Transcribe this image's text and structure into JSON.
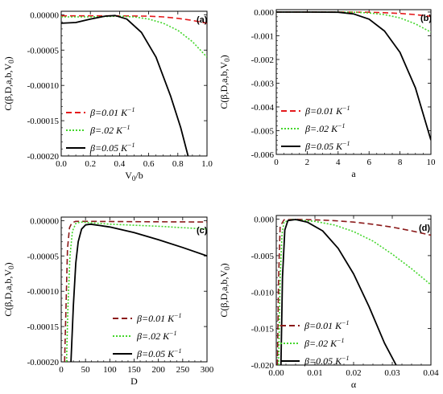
{
  "chart_data": [
    {
      "type": "line",
      "panel_label": "(a)",
      "xlabel_main": "V",
      "xlabel_sub": "0",
      "xlabel_rest": "/b",
      "ylabel": "C(β,D,a,b,V",
      "ylabel_sub": "0",
      "ylabel_close": ")",
      "xlim": [
        0,
        1.0
      ],
      "ylim": [
        -0.0002,
        5e-06
      ],
      "xticks": [
        0,
        0.2,
        0.4,
        0.6,
        0.8,
        1.0
      ],
      "xtick_labels": [
        "0.0",
        "0.2",
        "0.4",
        "0.6",
        "0.8",
        "1.0"
      ],
      "yticks": [
        0,
        -5e-05,
        -0.0001,
        -0.00015,
        -0.0002
      ],
      "ytick_labels": [
        "0.00000",
        "-0.00005",
        "-0.00010",
        "-0.00015",
        "-0.00020"
      ],
      "legend_position": "bottom-left",
      "series": [
        {
          "name": "β=0.01 K",
          "sup": "−1",
          "color": "#e41a1c",
          "dash": "7,4",
          "x": [
            0,
            0.2,
            0.4,
            0.6,
            0.7,
            0.8,
            0.9,
            1.0
          ],
          "y": [
            -1.5e-06,
            -1.5e-06,
            -1.5e-06,
            -2e-06,
            -3e-06,
            -5e-06,
            -8e-06,
            -1.2e-05
          ]
        },
        {
          "name": "β=.02 K",
          "sup": "−1",
          "color": "#44d62c",
          "dash": "2,2",
          "x": [
            0,
            0.2,
            0.4,
            0.5,
            0.6,
            0.7,
            0.8,
            0.9,
            1.0
          ],
          "y": [
            -3e-06,
            -3e-06,
            -2e-06,
            -3e-06,
            -6e-06,
            -1.2e-05,
            -2.2e-05,
            -3.8e-05,
            -6e-05
          ]
        },
        {
          "name": "β=0.05 K",
          "sup": "−1",
          "color": "#000000",
          "dash": "",
          "x": [
            0,
            0.1,
            0.2,
            0.3,
            0.37,
            0.45,
            0.55,
            0.65,
            0.75,
            0.82,
            0.87
          ],
          "y": [
            -1.2e-05,
            -1.1e-05,
            -6e-06,
            -2e-06,
            -1e-06,
            -6e-06,
            -2.5e-05,
            -6e-05,
            -0.000115,
            -0.00016,
            -0.0002
          ]
        }
      ]
    },
    {
      "type": "line",
      "panel_label": "(b)",
      "xlabel_main": "a",
      "xlabel_sub": "",
      "xlabel_rest": "",
      "ylabel": "C(β,D,a,b,V",
      "ylabel_sub": "0",
      "ylabel_close": ")",
      "xlim": [
        0,
        10
      ],
      "ylim": [
        -0.006,
        0.0001
      ],
      "xticks": [
        0,
        2,
        4,
        6,
        8,
        10
      ],
      "xtick_labels": [
        "0",
        "2",
        "4",
        "6",
        "8",
        "10"
      ],
      "yticks": [
        0,
        -0.001,
        -0.002,
        -0.003,
        -0.004,
        -0.005,
        -0.006
      ],
      "ytick_labels": [
        "0.000",
        "-0.001",
        "-0.002",
        "-0.003",
        "-0.004",
        "-0.005",
        "-0.006"
      ],
      "legend_position": "bottom-left",
      "series": [
        {
          "name": "β=0.01 K",
          "sup": "−1",
          "color": "#e41a1c",
          "dash": "7,4",
          "x": [
            0,
            2,
            4,
            6,
            7,
            8,
            9,
            10
          ],
          "y": [
            0,
            0,
            0,
            -1e-05,
            -3e-05,
            -6e-05,
            -0.00011,
            -0.00018
          ]
        },
        {
          "name": "β=.02 K",
          "sup": "−1",
          "color": "#44d62c",
          "dash": "2,2",
          "x": [
            0,
            2,
            4,
            5,
            6,
            7,
            8,
            9,
            10
          ],
          "y": [
            0,
            0,
            0,
            -1e-05,
            -4e-05,
            -0.00011,
            -0.00025,
            -0.0005,
            -0.00085
          ]
        },
        {
          "name": "β=0.05 K",
          "sup": "−1",
          "color": "#000000",
          "dash": "",
          "x": [
            0,
            2,
            4,
            5,
            6,
            7,
            8,
            9,
            10
          ],
          "y": [
            0,
            0,
            -1e-05,
            -8e-05,
            -0.0003,
            -0.0008,
            -0.0017,
            -0.0032,
            -0.0054
          ]
        }
      ]
    },
    {
      "type": "line",
      "panel_label": "(c)",
      "xlabel_main": "D",
      "xlabel_sub": "",
      "xlabel_rest": "",
      "ylabel": "C(β,D,a,b,V",
      "ylabel_sub": "0",
      "ylabel_close": ")",
      "xlim": [
        0,
        300
      ],
      "ylim": [
        -0.0002,
        5e-06
      ],
      "xticks": [
        0,
        50,
        100,
        150,
        200,
        250,
        300
      ],
      "xtick_labels": [
        "0",
        "50",
        "100",
        "150",
        "200",
        "250",
        "300"
      ],
      "yticks": [
        0,
        -5e-05,
        -0.0001,
        -0.00015,
        -0.0002
      ],
      "ytick_labels": [
        "0.00000",
        "-0.00005",
        "-0.00010",
        "-0.00015",
        "-0.00020"
      ],
      "legend_position": "bottom-right",
      "series": [
        {
          "name": "β=0.01 K",
          "sup": "−1",
          "color": "#8b1a1a",
          "dash": "7,4",
          "x": [
            7,
            10,
            13,
            17,
            22,
            30,
            60,
            150,
            300
          ],
          "y": [
            -0.0002,
            -0.00012,
            -4e-05,
            -1e-05,
            -3e-06,
            -1e-06,
            -1e-06,
            -1.5e-06,
            -2e-06
          ]
        },
        {
          "name": "β=.02 K",
          "sup": "−1",
          "color": "#44d62c",
          "dash": "2,2",
          "x": [
            11,
            14,
            18,
            23,
            30,
            40,
            60,
            100,
            200,
            300
          ],
          "y": [
            -0.0002,
            -0.00012,
            -5e-05,
            -1.5e-05,
            -4e-06,
            -2e-06,
            -3e-06,
            -5e-06,
            -8e-06,
            -1.2e-05
          ]
        },
        {
          "name": "β=0.05 K",
          "sup": "−1",
          "color": "#000000",
          "dash": "",
          "x": [
            20,
            25,
            30,
            35,
            42,
            50,
            60,
            80,
            100,
            150,
            200,
            250,
            300
          ],
          "y": [
            -0.0002,
            -0.00012,
            -6e-05,
            -3e-05,
            -1.2e-05,
            -6e-06,
            -5e-06,
            -7e-06,
            -9e-06,
            -1.7e-05,
            -2.7e-05,
            -3.8e-05,
            -5e-05
          ]
        }
      ]
    },
    {
      "type": "line",
      "panel_label": "(d)",
      "xlabel_main": "α",
      "xlabel_sub": "",
      "xlabel_rest": "",
      "ylabel": "C(β,D,a,b,V",
      "ylabel_sub": "0",
      "ylabel_close": ")",
      "xlim": [
        0,
        0.04
      ],
      "ylim": [
        -0.02,
        0.0005
      ],
      "xticks": [
        0,
        0.01,
        0.02,
        0.03,
        0.04
      ],
      "xtick_labels": [
        "0.00",
        "0.01",
        "0.02",
        "0.03",
        "0.04"
      ],
      "yticks": [
        0,
        -0.005,
        -0.01,
        -0.015,
        -0.02
      ],
      "ytick_labels": [
        "0.000",
        "-0.005",
        "-0.010",
        "-0.015",
        "-0.020"
      ],
      "legend_position": "bottom-left",
      "series": [
        {
          "name": "β=0.01 K",
          "sup": "−1",
          "color": "#8b1a1a",
          "dash": "7,4",
          "x": [
            0.0003,
            0.0006,
            0.001,
            0.002,
            0.005,
            0.01,
            0.015,
            0.02,
            0.025,
            0.03,
            0.035,
            0.04
          ],
          "y": [
            -0.02,
            -0.008,
            -0.001,
            -0.0001,
            -3e-05,
            -0.0001,
            -0.0002,
            -0.0004,
            -0.0007,
            -0.0011,
            -0.0016,
            -0.0022
          ]
        },
        {
          "name": "β=.02 K",
          "sup": "−1",
          "color": "#44d62c",
          "dash": "2,2",
          "x": [
            0.0006,
            0.001,
            0.0015,
            0.002,
            0.004,
            0.01,
            0.015,
            0.02,
            0.025,
            0.03,
            0.035,
            0.04
          ],
          "y": [
            -0.02,
            -0.008,
            -0.002,
            -0.0004,
            -5e-05,
            -0.0003,
            -0.0008,
            -0.0017,
            -0.003,
            -0.0048,
            -0.0068,
            -0.009
          ]
        },
        {
          "name": "β=0.05 K",
          "sup": "−1",
          "color": "#000000",
          "dash": "",
          "x": [
            0.0012,
            0.0016,
            0.0022,
            0.003,
            0.005,
            0.008,
            0.012,
            0.016,
            0.02,
            0.024,
            0.028,
            0.031
          ],
          "y": [
            -0.02,
            -0.008,
            -0.0015,
            -0.0002,
            -5e-05,
            -0.0004,
            -0.0016,
            -0.004,
            -0.0075,
            -0.012,
            -0.017,
            -0.02
          ]
        }
      ]
    }
  ]
}
